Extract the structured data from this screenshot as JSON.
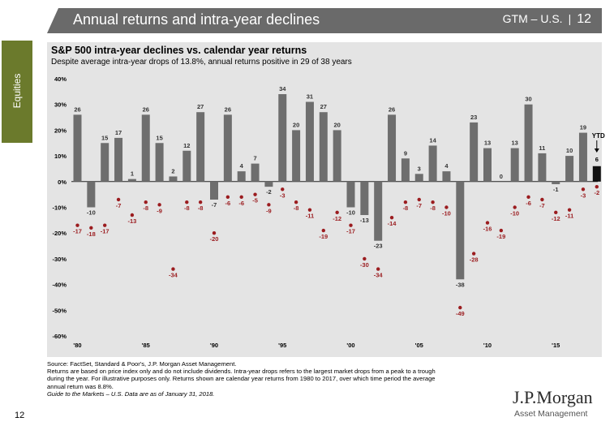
{
  "header": {
    "title": "Annual returns and intra-year declines",
    "gtm": "GTM – U.S.",
    "separator": "|",
    "page": "12"
  },
  "sidetab": {
    "label": "Equities"
  },
  "chart": {
    "title": "S&P 500 intra-year declines vs. calendar year returns",
    "subtitle": "Despite average intra-year drops of 13.8%, annual returns positive in 29 of 38 years"
  },
  "chart_data": {
    "type": "bar",
    "title": "S&P 500 intra-year declines vs. calendar year returns",
    "subtitle": "Despite average intra-year drops of 13.8%, annual returns positive in 29 of 38 years",
    "x": [
      1980,
      1981,
      1982,
      1983,
      1984,
      1985,
      1986,
      1987,
      1988,
      1989,
      1990,
      1991,
      1992,
      1993,
      1994,
      1995,
      1996,
      1997,
      1998,
      1999,
      2000,
      2001,
      2002,
      2003,
      2004,
      2005,
      2006,
      2007,
      2008,
      2009,
      2010,
      2011,
      2012,
      2013,
      2014,
      2015,
      2016,
      2017,
      2018
    ],
    "x_tick_labels": [
      {
        "year": 1980,
        "label": "'80"
      },
      {
        "year": 1985,
        "label": "'85"
      },
      {
        "year": 1990,
        "label": "'90"
      },
      {
        "year": 1995,
        "label": "'95"
      },
      {
        "year": 2000,
        "label": "'00"
      },
      {
        "year": 2005,
        "label": "'05"
      },
      {
        "year": 2010,
        "label": "'10"
      },
      {
        "year": 2015,
        "label": "'15"
      }
    ],
    "y_ticks": [
      40,
      30,
      20,
      10,
      0,
      -10,
      -20,
      -30,
      -40,
      -50,
      -60
    ],
    "y_tick_labels": [
      "40%",
      "30%",
      "20%",
      "10%",
      "0%",
      "-10%",
      "-20%",
      "-30%",
      "-40%",
      "-50%",
      "-60%"
    ],
    "ylim": [
      -60,
      40
    ],
    "series": [
      {
        "name": "Calendar year return",
        "values": [
          26,
          -10,
          15,
          17,
          1,
          26,
          15,
          2,
          12,
          27,
          -7,
          26,
          4,
          7,
          -2,
          34,
          20,
          31,
          27,
          20,
          -10,
          -13,
          -23,
          26,
          9,
          3,
          14,
          4,
          -38,
          23,
          13,
          0,
          13,
          30,
          11,
          -1,
          10,
          19,
          6
        ],
        "color": "#6e6e6e",
        "highlight_color": "#111111",
        "highlight_year": 2018
      },
      {
        "name": "Intra-year decline",
        "values": [
          -17,
          -18,
          -17,
          -7,
          -13,
          -8,
          -9,
          -34,
          -8,
          -8,
          -20,
          -6,
          -6,
          -5,
          -9,
          -3,
          -8,
          -11,
          -19,
          -12,
          -17,
          -30,
          -34,
          -14,
          -8,
          -7,
          -8,
          -10,
          -49,
          -28,
          -16,
          -19,
          -10,
          -6,
          -7,
          -12,
          -11,
          -3,
          -2
        ],
        "color": "#9b1c1f"
      }
    ],
    "annotation": {
      "label": "YTD",
      "value": "6",
      "year": 2018
    },
    "grid": false
  },
  "footnote": {
    "source": "Source: FactSet, Standard & Poor's, J.P. Morgan Asset Management.",
    "line2": "Returns are based on price index only and do not include dividends. Intra-year drops refers to the largest market drops from a peak to a trough",
    "line3": "during the year. For illustrative purposes only. Returns shown are calendar year returns from 1980 to 2017, over which time period the average",
    "line4": "annual return was 8.8%.",
    "guide": "Guide to the Markets – U.S. Data are as of January 31, 2018."
  },
  "page_number": "12",
  "logo": {
    "name": "J.P.Morgan",
    "sub": "Asset Management"
  }
}
